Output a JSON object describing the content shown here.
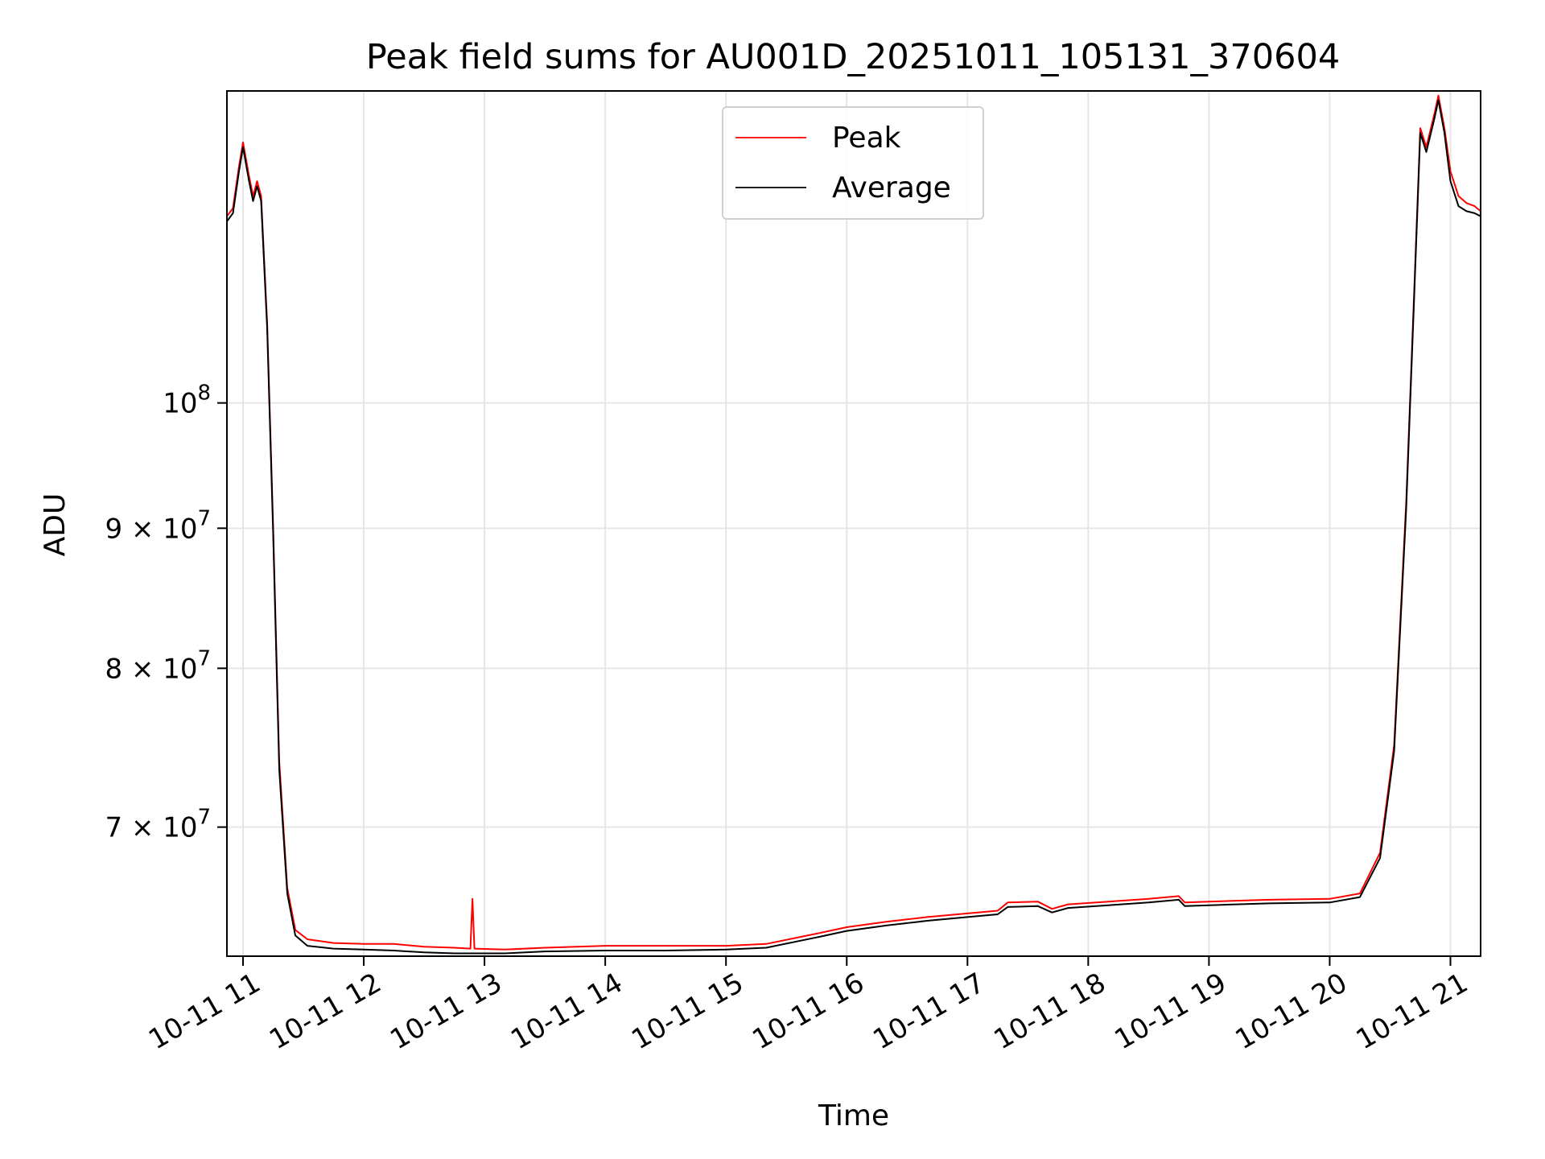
{
  "chart_data": {
    "type": "line",
    "title": "Peak field sums for AU001D_20251011_105131_370604",
    "xlabel": "Time",
    "ylabel": "ADU",
    "yscale": "log",
    "ylim": [
      62800000,
      130000000
    ],
    "xlim": [
      "2025-10-11 10:52",
      "2025-10-11 21:15"
    ],
    "grid": true,
    "legend_position": "upper center",
    "x_ticks": [
      {
        "t": "2025-10-11 11:00",
        "label": "10-11 11"
      },
      {
        "t": "2025-10-11 12:00",
        "label": "10-11 12"
      },
      {
        "t": "2025-10-11 13:00",
        "label": "10-11 13"
      },
      {
        "t": "2025-10-11 14:00",
        "label": "10-11 14"
      },
      {
        "t": "2025-10-11 15:00",
        "label": "10-11 15"
      },
      {
        "t": "2025-10-11 16:00",
        "label": "10-11 16"
      },
      {
        "t": "2025-10-11 17:00",
        "label": "10-11 17"
      },
      {
        "t": "2025-10-11 18:00",
        "label": "10-11 18"
      },
      {
        "t": "2025-10-11 19:00",
        "label": "10-11 19"
      },
      {
        "t": "2025-10-11 20:00",
        "label": "10-11 20"
      },
      {
        "t": "2025-10-11 21:00",
        "label": "10-11 21"
      }
    ],
    "y_ticks": [
      {
        "value": 70000000,
        "mantissa": "7 × 10",
        "exponent": "7"
      },
      {
        "value": 80000000,
        "mantissa": "8 × 10",
        "exponent": "7"
      },
      {
        "value": 90000000,
        "mantissa": "9 × 10",
        "exponent": "7"
      },
      {
        "value": 100000000,
        "mantissa": "10",
        "exponent": "8"
      }
    ],
    "series": [
      {
        "name": "Peak",
        "color": "#ff0000",
        "points": [
          [
            "2025-10-11 10:52",
            117000000
          ],
          [
            "2025-10-11 10:55",
            117800000
          ],
          [
            "2025-10-11 10:58",
            122000000
          ],
          [
            "2025-10-11 11:00",
            124500000
          ],
          [
            "2025-10-11 11:03",
            121000000
          ],
          [
            "2025-10-11 11:05",
            119000000
          ],
          [
            "2025-10-11 11:07",
            120500000
          ],
          [
            "2025-10-11 11:09",
            119000000
          ],
          [
            "2025-10-11 11:12",
            107000000
          ],
          [
            "2025-10-11 11:15",
            90000000
          ],
          [
            "2025-10-11 11:18",
            74000000
          ],
          [
            "2025-10-11 11:22",
            66500000
          ],
          [
            "2025-10-11 11:26",
            64200000
          ],
          [
            "2025-10-11 11:32",
            63700000
          ],
          [
            "2025-10-11 11:45",
            63500000
          ],
          [
            "2025-10-11 12:00",
            63450000
          ],
          [
            "2025-10-11 12:15",
            63450000
          ],
          [
            "2025-10-11 12:30",
            63300000
          ],
          [
            "2025-10-11 12:45",
            63250000
          ],
          [
            "2025-10-11 12:53",
            63200000
          ],
          [
            "2025-10-11 12:54",
            65900000
          ],
          [
            "2025-10-11 12:55",
            63200000
          ],
          [
            "2025-10-11 13:10",
            63150000
          ],
          [
            "2025-10-11 13:30",
            63250000
          ],
          [
            "2025-10-11 14:00",
            63350000
          ],
          [
            "2025-10-11 14:30",
            63350000
          ],
          [
            "2025-10-11 15:00",
            63350000
          ],
          [
            "2025-10-11 15:20",
            63450000
          ],
          [
            "2025-10-11 15:45",
            64000000
          ],
          [
            "2025-10-11 16:00",
            64350000
          ],
          [
            "2025-10-11 16:20",
            64650000
          ],
          [
            "2025-10-11 16:40",
            64900000
          ],
          [
            "2025-10-11 17:00",
            65100000
          ],
          [
            "2025-10-11 17:15",
            65250000
          ],
          [
            "2025-10-11 17:20",
            65700000
          ],
          [
            "2025-10-11 17:35",
            65750000
          ],
          [
            "2025-10-11 17:42",
            65350000
          ],
          [
            "2025-10-11 17:50",
            65600000
          ],
          [
            "2025-10-11 18:10",
            65750000
          ],
          [
            "2025-10-11 18:30",
            65900000
          ],
          [
            "2025-10-11 18:45",
            66050000
          ],
          [
            "2025-10-11 18:48",
            65700000
          ],
          [
            "2025-10-11 19:00",
            65750000
          ],
          [
            "2025-10-11 19:30",
            65850000
          ],
          [
            "2025-10-11 20:00",
            65900000
          ],
          [
            "2025-10-11 20:15",
            66200000
          ],
          [
            "2025-10-11 20:25",
            68500000
          ],
          [
            "2025-10-11 20:32",
            75000000
          ],
          [
            "2025-10-11 20:38",
            92000000
          ],
          [
            "2025-10-11 20:42",
            110000000
          ],
          [
            "2025-10-11 20:45",
            126000000
          ],
          [
            "2025-10-11 20:48",
            124000000
          ],
          [
            "2025-10-11 20:52",
            127500000
          ],
          [
            "2025-10-11 20:54",
            129500000
          ],
          [
            "2025-10-11 20:57",
            126000000
          ],
          [
            "2025-10-11 21:00",
            121500000
          ],
          [
            "2025-10-11 21:04",
            119000000
          ],
          [
            "2025-10-11 21:08",
            118300000
          ],
          [
            "2025-10-11 21:12",
            118000000
          ],
          [
            "2025-10-11 21:15",
            117500000
          ]
        ]
      },
      {
        "name": "Average",
        "color": "#000000",
        "points": [
          [
            "2025-10-11 10:52",
            116500000
          ],
          [
            "2025-10-11 10:55",
            117300000
          ],
          [
            "2025-10-11 10:58",
            121500000
          ],
          [
            "2025-10-11 11:00",
            124000000
          ],
          [
            "2025-10-11 11:03",
            120500000
          ],
          [
            "2025-10-11 11:05",
            118500000
          ],
          [
            "2025-10-11 11:07",
            120000000
          ],
          [
            "2025-10-11 11:09",
            118500000
          ],
          [
            "2025-10-11 11:12",
            106500000
          ],
          [
            "2025-10-11 11:15",
            89500000
          ],
          [
            "2025-10-11 11:18",
            73500000
          ],
          [
            "2025-10-11 11:22",
            66200000
          ],
          [
            "2025-10-11 11:26",
            63900000
          ],
          [
            "2025-10-11 11:32",
            63350000
          ],
          [
            "2025-10-11 11:45",
            63200000
          ],
          [
            "2025-10-11 12:00",
            63150000
          ],
          [
            "2025-10-11 12:15",
            63100000
          ],
          [
            "2025-10-11 12:30",
            63000000
          ],
          [
            "2025-10-11 12:45",
            62950000
          ],
          [
            "2025-10-11 12:53",
            62950000
          ],
          [
            "2025-10-11 12:55",
            62950000
          ],
          [
            "2025-10-11 13:10",
            62950000
          ],
          [
            "2025-10-11 13:30",
            63050000
          ],
          [
            "2025-10-11 14:00",
            63100000
          ],
          [
            "2025-10-11 14:30",
            63100000
          ],
          [
            "2025-10-11 15:00",
            63150000
          ],
          [
            "2025-10-11 15:20",
            63250000
          ],
          [
            "2025-10-11 15:45",
            63800000
          ],
          [
            "2025-10-11 16:00",
            64150000
          ],
          [
            "2025-10-11 16:20",
            64450000
          ],
          [
            "2025-10-11 16:40",
            64700000
          ],
          [
            "2025-10-11 17:00",
            64900000
          ],
          [
            "2025-10-11 17:15",
            65050000
          ],
          [
            "2025-10-11 17:20",
            65450000
          ],
          [
            "2025-10-11 17:35",
            65500000
          ],
          [
            "2025-10-11 17:42",
            65150000
          ],
          [
            "2025-10-11 17:50",
            65400000
          ],
          [
            "2025-10-11 18:10",
            65550000
          ],
          [
            "2025-10-11 18:30",
            65700000
          ],
          [
            "2025-10-11 18:45",
            65850000
          ],
          [
            "2025-10-11 18:48",
            65500000
          ],
          [
            "2025-10-11 19:00",
            65550000
          ],
          [
            "2025-10-11 19:30",
            65650000
          ],
          [
            "2025-10-11 20:00",
            65700000
          ],
          [
            "2025-10-11 20:15",
            66000000
          ],
          [
            "2025-10-11 20:25",
            68200000
          ],
          [
            "2025-10-11 20:32",
            74600000
          ],
          [
            "2025-10-11 20:38",
            91500000
          ],
          [
            "2025-10-11 20:42",
            109500000
          ],
          [
            "2025-10-11 20:45",
            125500000
          ],
          [
            "2025-10-11 20:48",
            123500000
          ],
          [
            "2025-10-11 20:52",
            127000000
          ],
          [
            "2025-10-11 20:54",
            129000000
          ],
          [
            "2025-10-11 20:57",
            125500000
          ],
          [
            "2025-10-11 21:00",
            120500000
          ],
          [
            "2025-10-11 21:04",
            118000000
          ],
          [
            "2025-10-11 21:08",
            117500000
          ],
          [
            "2025-10-11 21:12",
            117300000
          ],
          [
            "2025-10-11 21:15",
            117000000
          ]
        ]
      }
    ]
  }
}
